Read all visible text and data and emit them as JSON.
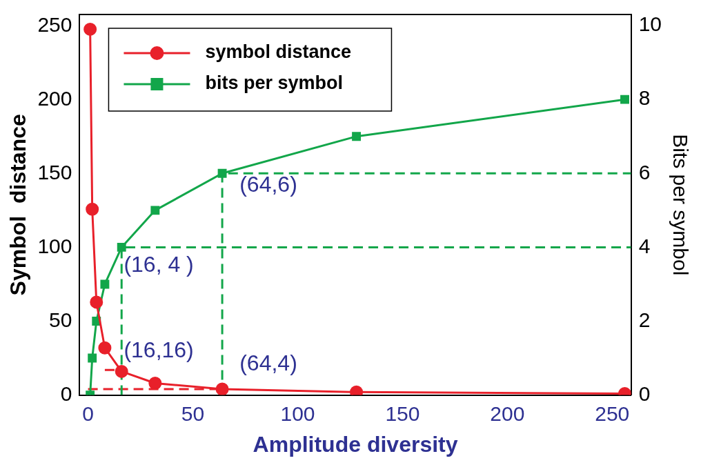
{
  "chart_data": {
    "type": "line",
    "xlabel": "Amplitude diversity",
    "ylabel": "Symbol  distance",
    "y2label": "Bits per symbol",
    "x": [
      1,
      2,
      4,
      8,
      16,
      32,
      64,
      128,
      256
    ],
    "xlim": [
      -4,
      259
    ],
    "xticks": [
      0,
      50,
      100,
      150,
      200,
      250
    ],
    "ylim": [
      0,
      258
    ],
    "yticks": [
      0,
      50,
      100,
      150,
      200,
      250
    ],
    "y2lim": [
      0,
      10.3
    ],
    "y2ticks": [
      0,
      2,
      4,
      6,
      8,
      10
    ],
    "legend": "top left",
    "grid": false,
    "series": [
      {
        "name": "symbol distance",
        "color": "#e8202a",
        "marker": "circle",
        "values": [
          248,
          126,
          63,
          32,
          16,
          8,
          4,
          2,
          1
        ]
      },
      {
        "name": "bits per symbol",
        "color": "#12a64a",
        "marker": "square",
        "axis": "y2",
        "values": [
          0,
          1,
          2,
          3,
          4,
          5,
          6,
          7,
          8
        ]
      },
      {
        "color": "#12a64a",
        "marker": "none",
        "line_style": "dashed",
        "axis": "y2",
        "x": [
          16,
          16,
          259
        ],
        "values": [
          0,
          4,
          4
        ]
      },
      {
        "color": "#12a64a",
        "marker": "none",
        "line_style": "dashed",
        "axis": "y2",
        "x": [
          64,
          64,
          259
        ],
        "values": [
          0,
          6,
          6
        ]
      },
      {
        "color": "#e8202a",
        "marker": "none",
        "line_style": "dashed",
        "x": [
          8,
          16
        ],
        "values": [
          17,
          17
        ]
      },
      {
        "color": "#e8202a",
        "marker": "none",
        "line_style": "dashed",
        "x": [
          0,
          64
        ],
        "values": [
          4,
          4
        ]
      }
    ],
    "annotations": [
      "(16, 4 )",
      "(64,6)",
      "(16,16)",
      "(64,4)"
    ]
  }
}
